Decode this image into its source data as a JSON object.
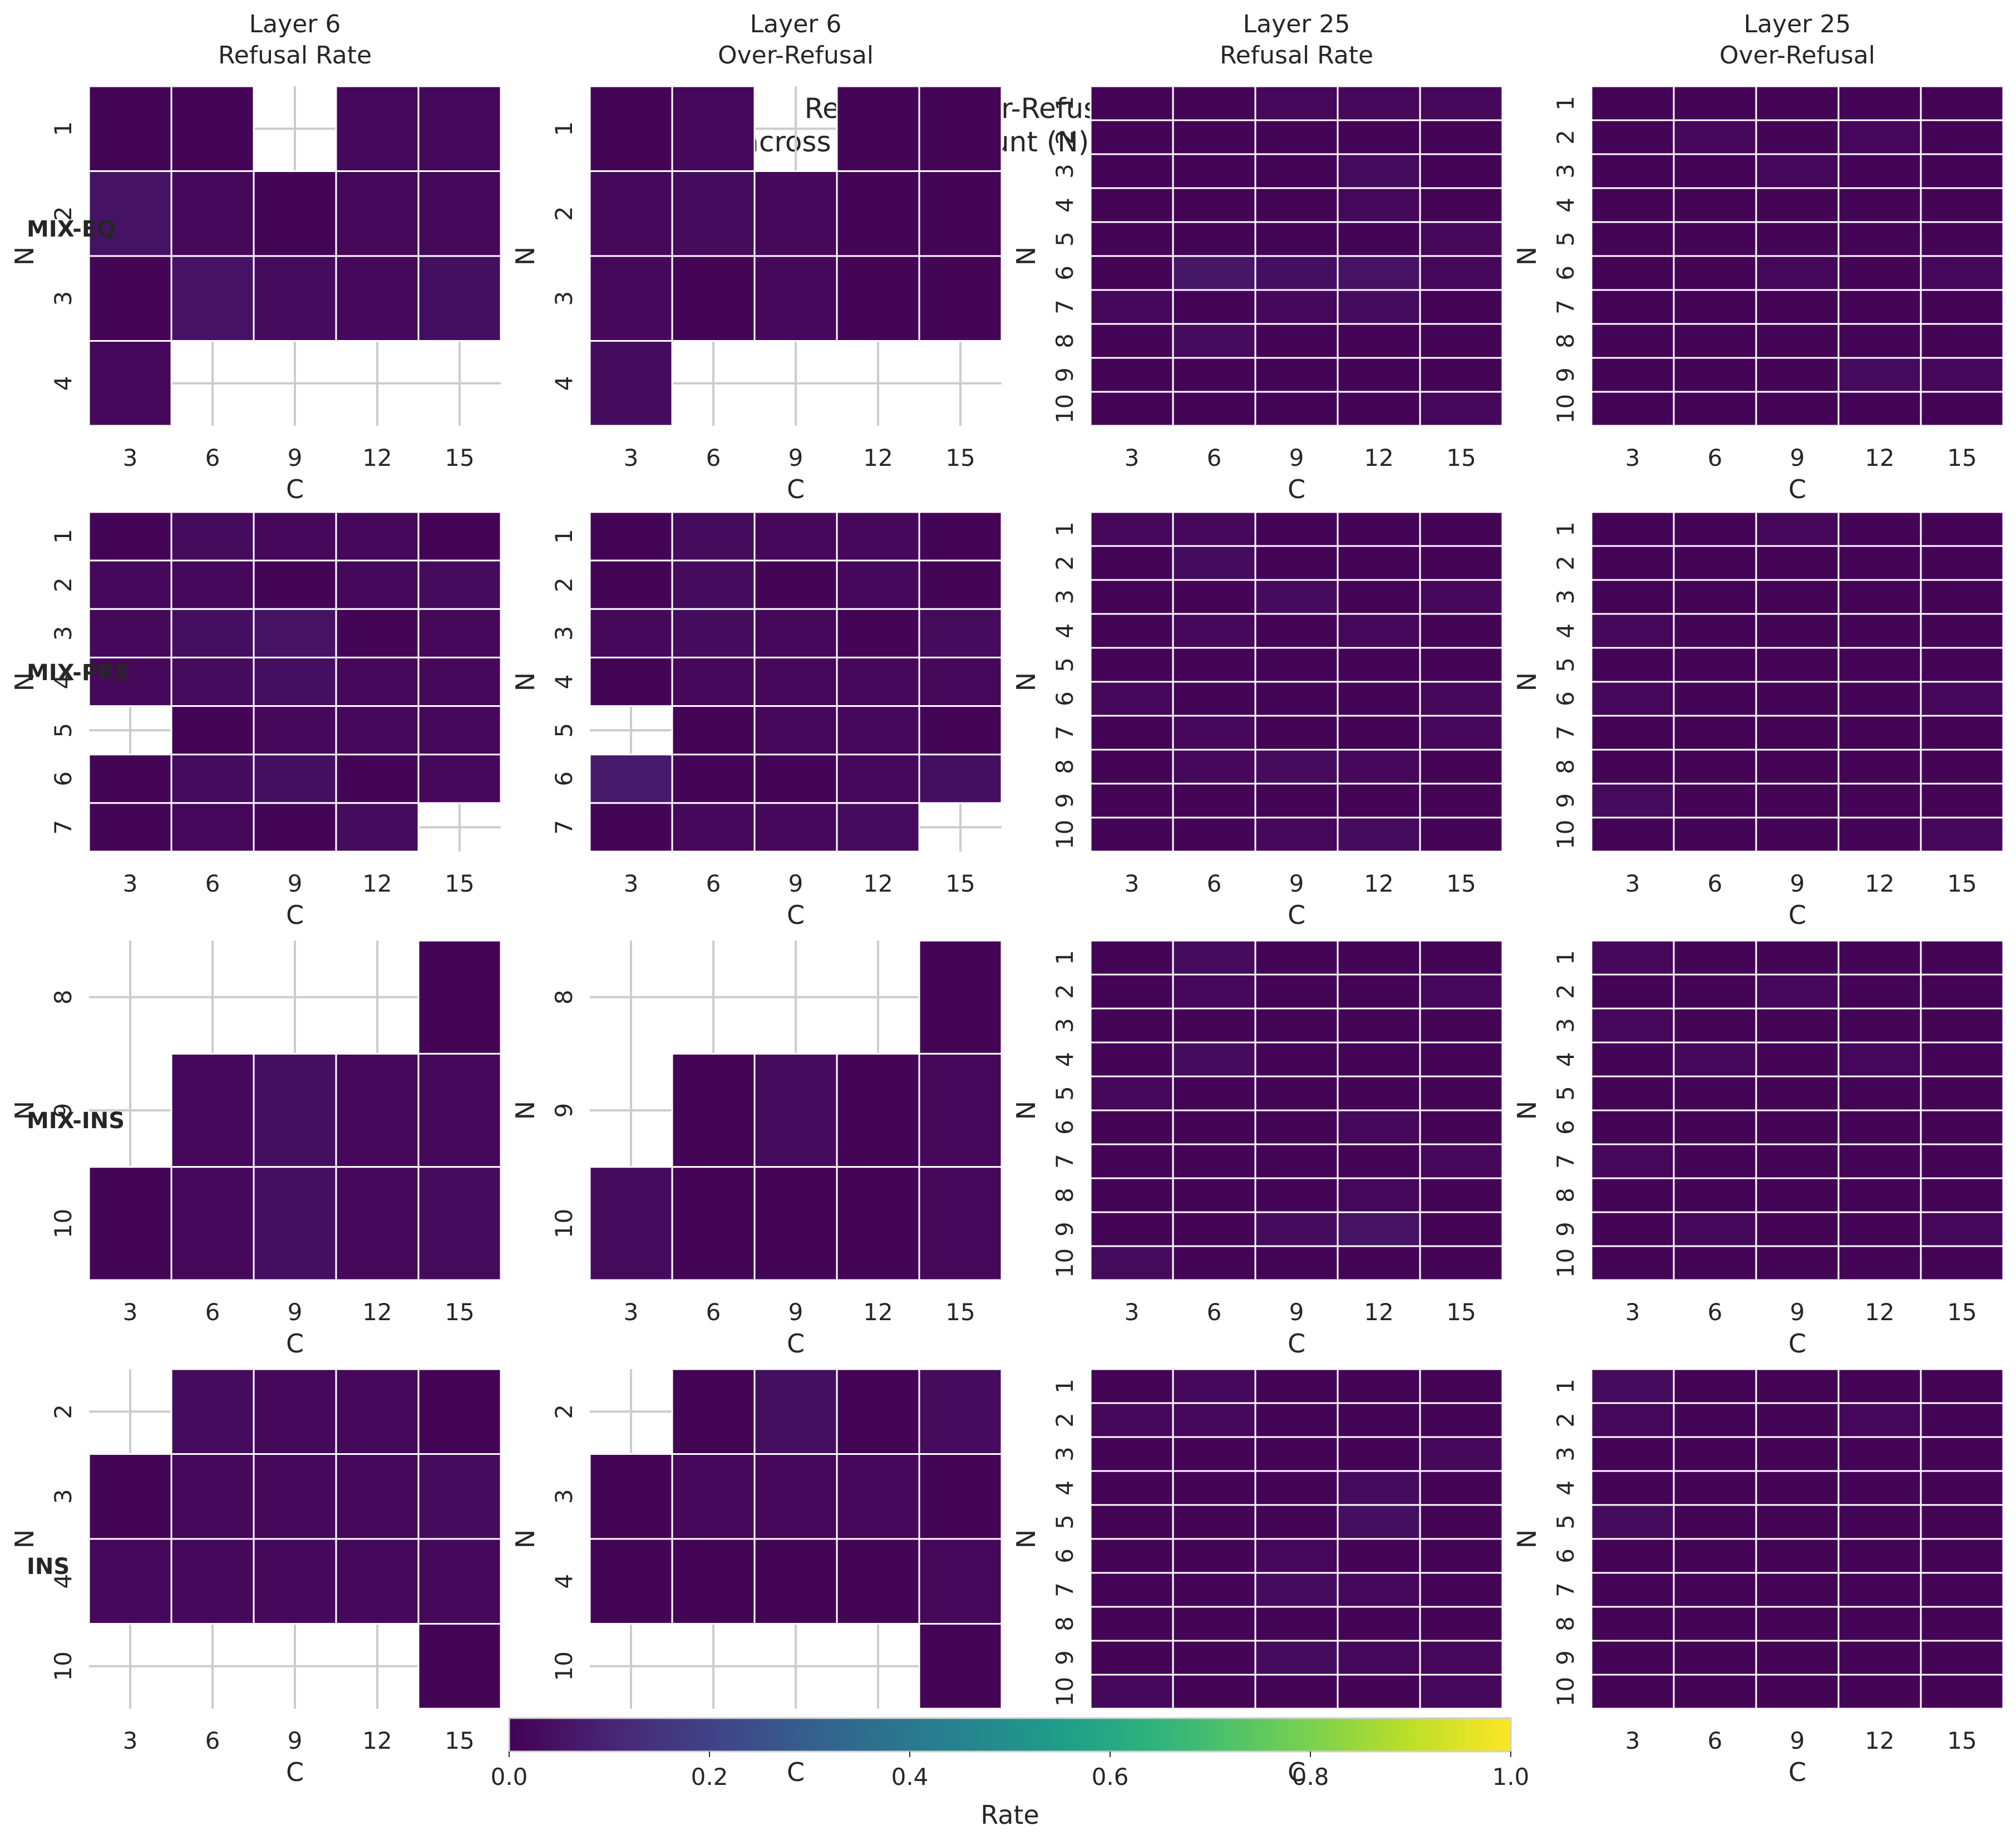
{
  "chart_data": {
    "type": "heatmap",
    "title": "Refusal & Over-Refusal Rates\nacross Feature-Count (N) and Coef (C)",
    "columns": [
      "Layer 6\nRefusal Rate",
      "Layer 6\nOver-Refusal",
      "Layer 25\nRefusal Rate",
      "Layer 25\nOver-Refusal"
    ],
    "rows": [
      "MIX-EQ",
      "MIX-PRE",
      "MIX-INS",
      "INS"
    ],
    "xlabel": "C",
    "ylabel": "N",
    "x_categories": [
      3,
      6,
      9,
      12,
      15
    ],
    "colorbar": {
      "label": "Rate",
      "range": [
        0,
        1
      ],
      "ticks": [
        "0.0",
        "0.2",
        "0.4",
        "0.6",
        "0.8",
        "1.0"
      ],
      "colormap": "viridis"
    },
    "panels": [
      {
        "row": 0,
        "col": 0,
        "y_categories": [
          1,
          2,
          3,
          4
        ],
        "values": [
          [
            0.01,
            0.01,
            null,
            0.02,
            0.02
          ],
          [
            0.05,
            0.02,
            0.01,
            0.02,
            0.02
          ],
          [
            0.01,
            0.05,
            0.03,
            0.02,
            0.04
          ],
          [
            0.02,
            null,
            null,
            null,
            null
          ]
        ]
      },
      {
        "row": 0,
        "col": 1,
        "y_categories": [
          1,
          2,
          3,
          4
        ],
        "values": [
          [
            0.01,
            0.02,
            null,
            0.01,
            0.01
          ],
          [
            0.02,
            0.03,
            0.02,
            0.01,
            0.01
          ],
          [
            0.02,
            0.01,
            0.02,
            0.01,
            0.01
          ],
          [
            0.03,
            null,
            null,
            null,
            null
          ]
        ]
      },
      {
        "row": 0,
        "col": 2,
        "y_categories": [
          1,
          2,
          3,
          4,
          5,
          6,
          7,
          8,
          9,
          10
        ],
        "values": [
          [
            0.01,
            0.01,
            0.02,
            0.02,
            0.02
          ],
          [
            0.01,
            0.01,
            0.01,
            0.01,
            0.01
          ],
          [
            0.01,
            0.01,
            0.01,
            0.03,
            0.01
          ],
          [
            0.01,
            0.01,
            0.01,
            0.02,
            0.01
          ],
          [
            0.01,
            0.01,
            0.01,
            0.01,
            0.02
          ],
          [
            0.01,
            0.06,
            0.04,
            0.05,
            0.02
          ],
          [
            0.02,
            0.01,
            0.02,
            0.03,
            0.01
          ],
          [
            0.01,
            0.03,
            0.01,
            0.01,
            0.01
          ],
          [
            0.01,
            0.01,
            0.01,
            0.01,
            0.01
          ],
          [
            0.01,
            0.01,
            0.01,
            0.01,
            0.02
          ]
        ]
      },
      {
        "row": 0,
        "col": 3,
        "y_categories": [
          1,
          2,
          3,
          4,
          5,
          6,
          7,
          8,
          9,
          10
        ],
        "values": [
          [
            0.01,
            0.01,
            0.01,
            0.01,
            0.01
          ],
          [
            0.01,
            0.02,
            0.01,
            0.02,
            0.01
          ],
          [
            0.01,
            0.01,
            0.02,
            0.01,
            0.01
          ],
          [
            0.01,
            0.01,
            0.01,
            0.01,
            0.01
          ],
          [
            0.01,
            0.01,
            0.01,
            0.01,
            0.01
          ],
          [
            0.01,
            0.01,
            0.02,
            0.01,
            0.02
          ],
          [
            0.01,
            0.01,
            0.01,
            0.01,
            0.01
          ],
          [
            0.01,
            0.01,
            0.01,
            0.01,
            0.01
          ],
          [
            0.01,
            0.01,
            0.01,
            0.03,
            0.02
          ],
          [
            0.01,
            0.01,
            0.01,
            0.01,
            0.01
          ]
        ]
      },
      {
        "row": 1,
        "col": 0,
        "y_categories": [
          1,
          2,
          3,
          4,
          5,
          6,
          7
        ],
        "values": [
          [
            0.01,
            0.03,
            0.02,
            0.02,
            0.01
          ],
          [
            0.02,
            0.02,
            0.01,
            0.02,
            0.03
          ],
          [
            0.02,
            0.04,
            0.05,
            0.01,
            0.02
          ],
          [
            0.02,
            0.03,
            0.04,
            0.02,
            0.02
          ],
          [
            null,
            0.01,
            0.02,
            0.02,
            0.02
          ],
          [
            0.01,
            0.03,
            0.04,
            0.01,
            0.02
          ],
          [
            0.01,
            0.02,
            0.01,
            0.03,
            null
          ]
        ]
      },
      {
        "row": 1,
        "col": 1,
        "y_categories": [
          1,
          2,
          3,
          4,
          5,
          6,
          7
        ],
        "values": [
          [
            0.01,
            0.03,
            0.02,
            0.02,
            0.01
          ],
          [
            0.01,
            0.03,
            0.01,
            0.02,
            0.01
          ],
          [
            0.02,
            0.03,
            0.02,
            0.01,
            0.03
          ],
          [
            0.01,
            0.02,
            0.02,
            0.02,
            0.02
          ],
          [
            null,
            0.01,
            0.02,
            0.02,
            0.01
          ],
          [
            0.07,
            0.01,
            0.01,
            0.02,
            0.04
          ],
          [
            0.01,
            0.02,
            0.02,
            0.03,
            null
          ]
        ]
      },
      {
        "row": 1,
        "col": 2,
        "y_categories": [
          1,
          2,
          3,
          4,
          5,
          6,
          7,
          8,
          9,
          10
        ],
        "values": [
          [
            0.02,
            0.02,
            0.01,
            0.01,
            0.01
          ],
          [
            0.01,
            0.03,
            0.01,
            0.01,
            0.01
          ],
          [
            0.01,
            0.01,
            0.03,
            0.01,
            0.02
          ],
          [
            0.01,
            0.02,
            0.01,
            0.02,
            0.01
          ],
          [
            0.01,
            0.01,
            0.01,
            0.01,
            0.01
          ],
          [
            0.02,
            0.01,
            0.01,
            0.01,
            0.02
          ],
          [
            0.01,
            0.02,
            0.01,
            0.01,
            0.02
          ],
          [
            0.01,
            0.02,
            0.03,
            0.02,
            0.01
          ],
          [
            0.01,
            0.01,
            0.01,
            0.01,
            0.01
          ],
          [
            0.01,
            0.01,
            0.02,
            0.03,
            0.01
          ]
        ]
      },
      {
        "row": 1,
        "col": 3,
        "y_categories": [
          1,
          2,
          3,
          4,
          5,
          6,
          7,
          8,
          9,
          10
        ],
        "values": [
          [
            0.01,
            0.01,
            0.02,
            0.01,
            0.01
          ],
          [
            0.01,
            0.01,
            0.01,
            0.01,
            0.01
          ],
          [
            0.01,
            0.01,
            0.01,
            0.01,
            0.01
          ],
          [
            0.02,
            0.01,
            0.01,
            0.01,
            0.01
          ],
          [
            0.01,
            0.01,
            0.01,
            0.01,
            0.01
          ],
          [
            0.02,
            0.01,
            0.01,
            0.01,
            0.02
          ],
          [
            0.01,
            0.01,
            0.01,
            0.01,
            0.01
          ],
          [
            0.01,
            0.01,
            0.01,
            0.01,
            0.01
          ],
          [
            0.03,
            0.01,
            0.01,
            0.01,
            0.01
          ],
          [
            0.01,
            0.01,
            0.01,
            0.01,
            0.02
          ]
        ]
      },
      {
        "row": 2,
        "col": 0,
        "y_categories": [
          8,
          9,
          10
        ],
        "values": [
          [
            null,
            null,
            null,
            null,
            0.01
          ],
          [
            null,
            0.02,
            0.04,
            0.02,
            0.02
          ],
          [
            0.01,
            0.02,
            0.04,
            0.02,
            0.03
          ]
        ]
      },
      {
        "row": 2,
        "col": 1,
        "y_categories": [
          8,
          9,
          10
        ],
        "values": [
          [
            null,
            null,
            null,
            null,
            0.01
          ],
          [
            null,
            0.01,
            0.03,
            0.01,
            0.02
          ],
          [
            0.03,
            0.01,
            0.01,
            0.01,
            0.02
          ]
        ]
      },
      {
        "row": 2,
        "col": 2,
        "y_categories": [
          1,
          2,
          3,
          4,
          5,
          6,
          7,
          8,
          9,
          10
        ],
        "values": [
          [
            0.01,
            0.03,
            0.01,
            0.01,
            0.01
          ],
          [
            0.01,
            0.02,
            0.01,
            0.01,
            0.02
          ],
          [
            0.01,
            0.01,
            0.01,
            0.01,
            0.01
          ],
          [
            0.01,
            0.03,
            0.01,
            0.01,
            0.01
          ],
          [
            0.02,
            0.01,
            0.01,
            0.01,
            0.01
          ],
          [
            0.01,
            0.01,
            0.01,
            0.02,
            0.01
          ],
          [
            0.01,
            0.01,
            0.01,
            0.01,
            0.02
          ],
          [
            0.01,
            0.01,
            0.01,
            0.02,
            0.01
          ],
          [
            0.01,
            0.01,
            0.03,
            0.05,
            0.01
          ],
          [
            0.03,
            0.01,
            0.01,
            0.01,
            0.01
          ]
        ]
      },
      {
        "row": 2,
        "col": 3,
        "y_categories": [
          1,
          2,
          3,
          4,
          5,
          6,
          7,
          8,
          9,
          10
        ],
        "values": [
          [
            0.02,
            0.01,
            0.01,
            0.01,
            0.01
          ],
          [
            0.01,
            0.01,
            0.02,
            0.01,
            0.01
          ],
          [
            0.02,
            0.01,
            0.01,
            0.01,
            0.01
          ],
          [
            0.01,
            0.02,
            0.01,
            0.02,
            0.01
          ],
          [
            0.01,
            0.01,
            0.01,
            0.01,
            0.01
          ],
          [
            0.01,
            0.01,
            0.01,
            0.01,
            0.01
          ],
          [
            0.02,
            0.01,
            0.01,
            0.01,
            0.01
          ],
          [
            0.01,
            0.01,
            0.01,
            0.01,
            0.01
          ],
          [
            0.01,
            0.02,
            0.01,
            0.01,
            0.02
          ],
          [
            0.01,
            0.01,
            0.01,
            0.01,
            0.01
          ]
        ]
      },
      {
        "row": 3,
        "col": 0,
        "y_categories": [
          2,
          3,
          4,
          10
        ],
        "values": [
          [
            null,
            0.03,
            0.02,
            0.02,
            0.01
          ],
          [
            0.01,
            0.02,
            0.02,
            0.02,
            0.03
          ],
          [
            0.02,
            0.02,
            0.02,
            0.02,
            0.02
          ],
          [
            null,
            null,
            null,
            null,
            0.01
          ]
        ]
      },
      {
        "row": 3,
        "col": 1,
        "y_categories": [
          2,
          3,
          4,
          10
        ],
        "values": [
          [
            null,
            0.01,
            0.04,
            0.01,
            0.03
          ],
          [
            0.01,
            0.02,
            0.02,
            0.02,
            0.01
          ],
          [
            0.01,
            0.01,
            0.01,
            0.01,
            0.02
          ],
          [
            null,
            null,
            null,
            null,
            0.01
          ]
        ]
      },
      {
        "row": 3,
        "col": 2,
        "y_categories": [
          1,
          2,
          3,
          4,
          5,
          6,
          7,
          8,
          9,
          10
        ],
        "values": [
          [
            0.01,
            0.02,
            0.01,
            0.01,
            0.01
          ],
          [
            0.02,
            0.02,
            0.01,
            0.01,
            0.01
          ],
          [
            0.01,
            0.01,
            0.01,
            0.01,
            0.02
          ],
          [
            0.01,
            0.01,
            0.01,
            0.03,
            0.01
          ],
          [
            0.01,
            0.01,
            0.01,
            0.04,
            0.01
          ],
          [
            0.01,
            0.01,
            0.02,
            0.01,
            0.01
          ],
          [
            0.01,
            0.01,
            0.03,
            0.02,
            0.01
          ],
          [
            0.01,
            0.01,
            0.01,
            0.01,
            0.01
          ],
          [
            0.01,
            0.01,
            0.03,
            0.02,
            0.02
          ],
          [
            0.02,
            0.01,
            0.01,
            0.01,
            0.02
          ]
        ]
      },
      {
        "row": 3,
        "col": 3,
        "y_categories": [
          1,
          2,
          3,
          4,
          5,
          6,
          7,
          8,
          9,
          10
        ],
        "values": [
          [
            0.03,
            0.01,
            0.01,
            0.01,
            0.01
          ],
          [
            0.02,
            0.01,
            0.01,
            0.02,
            0.01
          ],
          [
            0.01,
            0.01,
            0.01,
            0.01,
            0.01
          ],
          [
            0.01,
            0.01,
            0.01,
            0.01,
            0.01
          ],
          [
            0.03,
            0.01,
            0.01,
            0.01,
            0.01
          ],
          [
            0.01,
            0.01,
            0.01,
            0.01,
            0.01
          ],
          [
            0.01,
            0.01,
            0.01,
            0.01,
            0.01
          ],
          [
            0.01,
            0.01,
            0.01,
            0.01,
            0.01
          ],
          [
            0.01,
            0.01,
            0.01,
            0.01,
            0.01
          ],
          [
            0.01,
            0.01,
            0.01,
            0.01,
            0.01
          ]
        ]
      }
    ]
  }
}
